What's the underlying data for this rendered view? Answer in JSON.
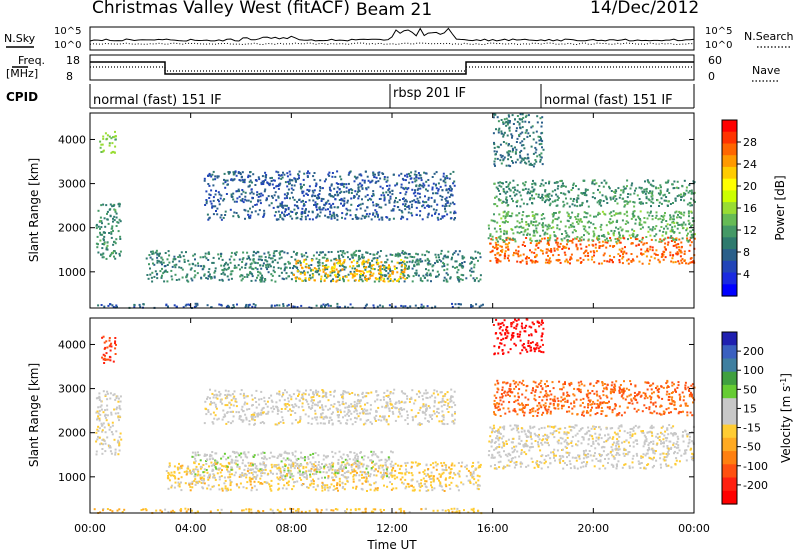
{
  "header": {
    "radar": "Christmas Valley West (fitACF)",
    "beam": "Beam 21",
    "date": "14/Dec/2012"
  },
  "strip_panels": {
    "nsky": {
      "label": "N.Sky",
      "ticks": [
        "10^5",
        "10^0"
      ]
    },
    "nsearch": {
      "label": "N.Search",
      "ticks": [
        "10^5",
        "10^0"
      ]
    },
    "freq": {
      "label_line1": "Freq.",
      "label_line2": "[MHz]",
      "ticks": [
        "18",
        "8"
      ]
    },
    "nave": {
      "label": "Nave",
      "ticks": [
        "60",
        "0"
      ]
    },
    "cpid": {
      "label": "CPID",
      "modes": [
        {
          "name": "normal (fast) 151 IF",
          "start_hour": 0,
          "end_hour": 12
        },
        {
          "name": "rbsp 201 IF",
          "start_hour": 12,
          "end_hour": 18
        },
        {
          "name": "normal (fast) 151 IF",
          "start_hour": 18,
          "end_hour": 24
        }
      ]
    }
  },
  "colorbars": {
    "power": {
      "label": "Power [dB]",
      "ticks": [
        "28",
        "24",
        "20",
        "16",
        "12",
        "8",
        "4"
      ],
      "colors": [
        "#ff0000",
        "#ff3300",
        "#ff6600",
        "#ff9900",
        "#ffcc00",
        "#ffff00",
        "#ccff00",
        "#99dd33",
        "#66bb55",
        "#449966",
        "#2e7a6e",
        "#2a5f8a",
        "#2245b8",
        "#1a2ae0",
        "#0000ff"
      ]
    },
    "velocity": {
      "label": "Velocity [m s",
      "label_exp": "-1",
      "label_end": "]",
      "ticks": [
        "200",
        "100",
        "50",
        "15",
        "-15",
        "-50",
        "-100",
        "-200"
      ],
      "colors": [
        "#2020b0",
        "#3a60c0",
        "#3f7fa0",
        "#40a040",
        "#66cc33",
        "#c8c8c8",
        "#c8c8c8",
        "#ffcc33",
        "#ffaa22",
        "#ff8010",
        "#ff5010",
        "#ff2010",
        "#ff0000"
      ]
    }
  },
  "chart_data": {
    "type": "heatmap",
    "xlabel": "Time UT",
    "x_ticks": [
      "00:00",
      "04:00",
      "08:00",
      "12:00",
      "16:00",
      "20:00",
      "00:00"
    ],
    "xlim_hours": [
      0,
      24
    ],
    "ylabel": "Slant Range [km]",
    "y_ticks": [
      1000,
      2000,
      3000,
      4000
    ],
    "ylim_km": [
      180,
      4600
    ],
    "panels": [
      {
        "quantity": "Power",
        "units": "dB",
        "scale": [
          0,
          30
        ],
        "regions": [
          {
            "t0": 0.2,
            "t1": 1.2,
            "r0": 1300,
            "r1": 2600,
            "value": 10
          },
          {
            "t0": 0.3,
            "t1": 1.0,
            "r0": 3700,
            "r1": 4200,
            "value": 14
          },
          {
            "t0": 2.2,
            "t1": 15.5,
            "r0": 800,
            "r1": 1500,
            "value": 9
          },
          {
            "t0": 4.5,
            "t1": 14.5,
            "r0": 2200,
            "r1": 3300,
            "value": 6
          },
          {
            "t0": 8.0,
            "t1": 12.5,
            "r0": 800,
            "r1": 1300,
            "value": 22
          },
          {
            "t0": 0.0,
            "t1": 15.6,
            "r0": 200,
            "r1": 300,
            "value": 6
          },
          {
            "t0": 15.8,
            "t1": 24.0,
            "r0": 1200,
            "r1": 1800,
            "value": 26
          },
          {
            "t0": 15.8,
            "t1": 24.0,
            "r0": 1700,
            "r1": 2400,
            "value": 12
          },
          {
            "t0": 16.0,
            "t1": 24.0,
            "r0": 2500,
            "r1": 3100,
            "value": 10
          },
          {
            "t0": 16.0,
            "t1": 18.0,
            "r0": 3400,
            "r1": 4600,
            "value": 8
          }
        ]
      },
      {
        "quantity": "Velocity",
        "units": "m s-1",
        "scale": [
          -200,
          200
        ],
        "regions": [
          {
            "t0": 0.2,
            "t1": 1.2,
            "r0": 1500,
            "r1": 3000,
            "value": 0
          },
          {
            "t0": 0.4,
            "t1": 1.0,
            "r0": 3600,
            "r1": 4200,
            "value": -150
          },
          {
            "t0": 3.0,
            "t1": 15.5,
            "r0": 700,
            "r1": 1350,
            "value": -30
          },
          {
            "t0": 4.0,
            "t1": 12.0,
            "r0": 1000,
            "r1": 1600,
            "value": 30
          },
          {
            "t0": 4.5,
            "t1": 14.5,
            "r0": 2200,
            "r1": 3000,
            "value": 0
          },
          {
            "t0": 0.0,
            "t1": 15.6,
            "r0": 200,
            "r1": 300,
            "value": -40
          },
          {
            "t0": 15.8,
            "t1": 24.0,
            "r0": 1200,
            "r1": 2200,
            "value": 0
          },
          {
            "t0": 16.0,
            "t1": 24.0,
            "r0": 2400,
            "r1": 3200,
            "value": -120
          },
          {
            "t0": 16.0,
            "t1": 18.0,
            "r0": 3800,
            "r1": 4600,
            "value": -200
          }
        ]
      }
    ]
  }
}
